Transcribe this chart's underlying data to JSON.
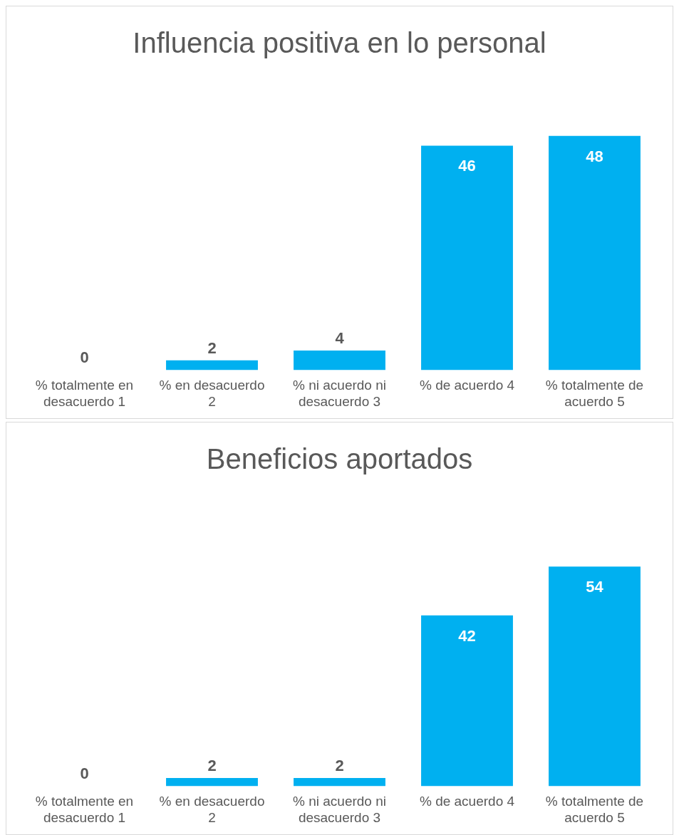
{
  "chart_data": [
    {
      "type": "bar",
      "title": "Influencia positiva en lo personal",
      "categories": [
        "% totalmente en desacuerdo 1",
        "% en desacuerdo 2",
        "% ni acuerdo ni desacuerdo 3",
        "% de acuerdo 4",
        "% totalmente de acuerdo 5"
      ],
      "values": [
        0,
        2,
        4,
        46,
        48
      ],
      "color": "#00b0f0",
      "data_labels": true
    },
    {
      "type": "bar",
      "title": "Beneficios aportados",
      "categories": [
        "% totalmente en desacuerdo 1",
        "% en desacuerdo 2",
        "% ni acuerdo ni desacuerdo 3",
        "% de acuerdo 4",
        "% totalmente de acuerdo 5"
      ],
      "values": [
        0,
        2,
        2,
        42,
        54
      ],
      "color": "#00b0f0",
      "data_labels": true
    }
  ]
}
